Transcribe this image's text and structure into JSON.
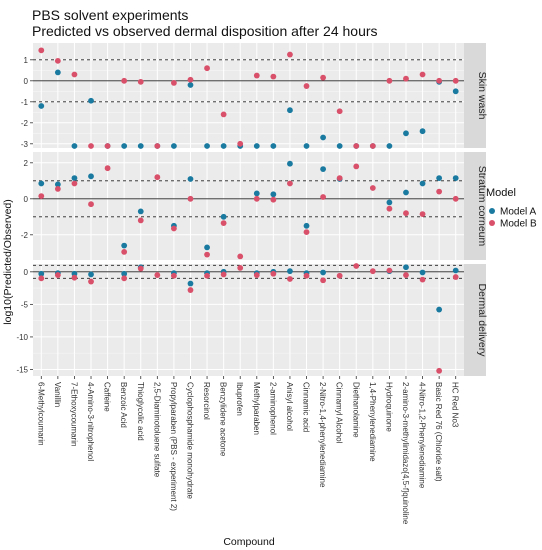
{
  "chart_data": {
    "type": "scatter",
    "title": "PBS solvent experiments",
    "subtitle": "Predicted vs observed dermal disposition after 24 hours",
    "xlabel": "Compound",
    "ylabel": "log10(Predicted/Observed)",
    "legend": {
      "title": "Model",
      "position": "right",
      "entries": [
        {
          "name": "Model A",
          "color": "#1a7aa0"
        },
        {
          "name": "Model B",
          "color": "#d9506a"
        }
      ]
    },
    "grid": true,
    "reference_lines": {
      "solid": [
        0
      ],
      "dashed": [
        -1,
        1
      ]
    },
    "categories": [
      "6-Methylcoumarin",
      "Vanillin",
      "7-Ethoxycoumarin",
      "4-Amino-3-nitrophenol",
      "Caffeine",
      "Benzoic Acid",
      "Thioglycolic acid",
      "2,5-Diaminotoluene sulfate",
      "Propylparaben (PBS - experiment 2)",
      "Cyclophosphamide monohydrate",
      "Resorcinol",
      "Benzylidene acetone",
      "Ibuprofen",
      "Methylparaben",
      "2-aminophenol",
      "Anisyl alcohol",
      "Cinnamic acid",
      "2-Nitro-1,4-phenylenediamine",
      "Cinnamyl Alcohol",
      "Diethanolamine",
      "1,4-Phenylenediamine",
      "Hydroquinone",
      "2-amino-3-methylimidazo[4,5-f]quinoline",
      "4-Nitro-1,2-Phenylenediamine",
      "Basic Red 76 (Chloride salt)",
      "HC Red No3"
    ],
    "panels": [
      {
        "name": "Skin wash",
        "ylim": [
          -3.2,
          1.8
        ],
        "yticks": [
          1,
          0,
          -1,
          -2,
          -3
        ],
        "ytick_labels": [
          "1",
          "0",
          "-1",
          "-2",
          "-3"
        ],
        "series": [
          {
            "name": "Model A",
            "values": [
              -1.2,
              0.4,
              -3.2,
              -0.95,
              -3.2,
              -3.2,
              -3.2,
              -3.2,
              -3.2,
              -0.2,
              -3.2,
              -3.2,
              -3.2,
              -3.2,
              -3.2,
              -1.4,
              -3.2,
              -2.7,
              -3.2,
              -3.2,
              -3.2,
              -3.2,
              -2.5,
              -2.4,
              -0.05,
              -0.5
            ]
          },
          {
            "name": "Model B",
            "values": [
              1.45,
              0.95,
              0.3,
              -3.2,
              -3.2,
              0.0,
              -0.05,
              -3.2,
              -0.1,
              0.05,
              0.6,
              -1.6,
              -3.0,
              0.25,
              0.2,
              1.25,
              -0.25,
              0.15,
              -1.45,
              -3.2,
              -3.2,
              0.0,
              0.1,
              0.3,
              0.0,
              0.0
            ]
          }
        ]
      },
      {
        "name": "Stratum corneum",
        "ylim": [
          -3.4,
          2.6
        ],
        "yticks": [
          2,
          0,
          -2
        ],
        "ytick_labels": [
          "2",
          "0",
          "-2"
        ],
        "series": [
          {
            "name": "Model A",
            "values": [
              0.85,
              0.8,
              1.15,
              1.25,
              null,
              -2.6,
              -0.7,
              null,
              -1.5,
              1.1,
              -2.7,
              -1.0,
              null,
              0.3,
              0.25,
              1.95,
              -1.5,
              1.65,
              1.1,
              null,
              null,
              -0.2,
              0.35,
              0.85,
              1.15,
              1.15
            ]
          },
          {
            "name": "Model B",
            "values": [
              0.15,
              0.55,
              0.85,
              -0.3,
              1.7,
              -2.95,
              -1.2,
              1.2,
              -1.65,
              0.0,
              -3.1,
              -1.35,
              -3.2,
              0.0,
              -0.05,
              0.85,
              -1.85,
              0.1,
              1.15,
              1.8,
              0.6,
              -0.55,
              -0.8,
              -0.85,
              0.4,
              0.0
            ]
          }
        ]
      },
      {
        "name": "Dermal delivery",
        "ylim": [
          -16,
          1.2
        ],
        "yticks": [
          0,
          -5,
          -10,
          -15
        ],
        "ytick_labels": [
          "0",
          "-5",
          "-10",
          "-15"
        ],
        "series": [
          {
            "name": "Model A",
            "values": [
              -0.3,
              -0.2,
              -0.3,
              -0.4,
              null,
              -0.3,
              0.7,
              null,
              -0.2,
              -1.8,
              -0.2,
              0.0,
              null,
              -0.2,
              0.0,
              0.1,
              -0.2,
              -0.1,
              null,
              null,
              null,
              0.1,
              0.7,
              -0.1,
              -5.8,
              0.2
            ]
          },
          {
            "name": "Model B",
            "values": [
              -1.0,
              -0.5,
              -0.9,
              -1.5,
              null,
              -1.0,
              0.5,
              -0.5,
              -0.6,
              -2.8,
              -0.6,
              -0.4,
              0.6,
              -0.5,
              -0.3,
              -1.1,
              -0.6,
              -1.3,
              -0.6,
              1.0,
              0.1,
              0.2,
              -0.5,
              -1.2,
              -15.2,
              -0.8
            ]
          }
        ]
      }
    ]
  }
}
